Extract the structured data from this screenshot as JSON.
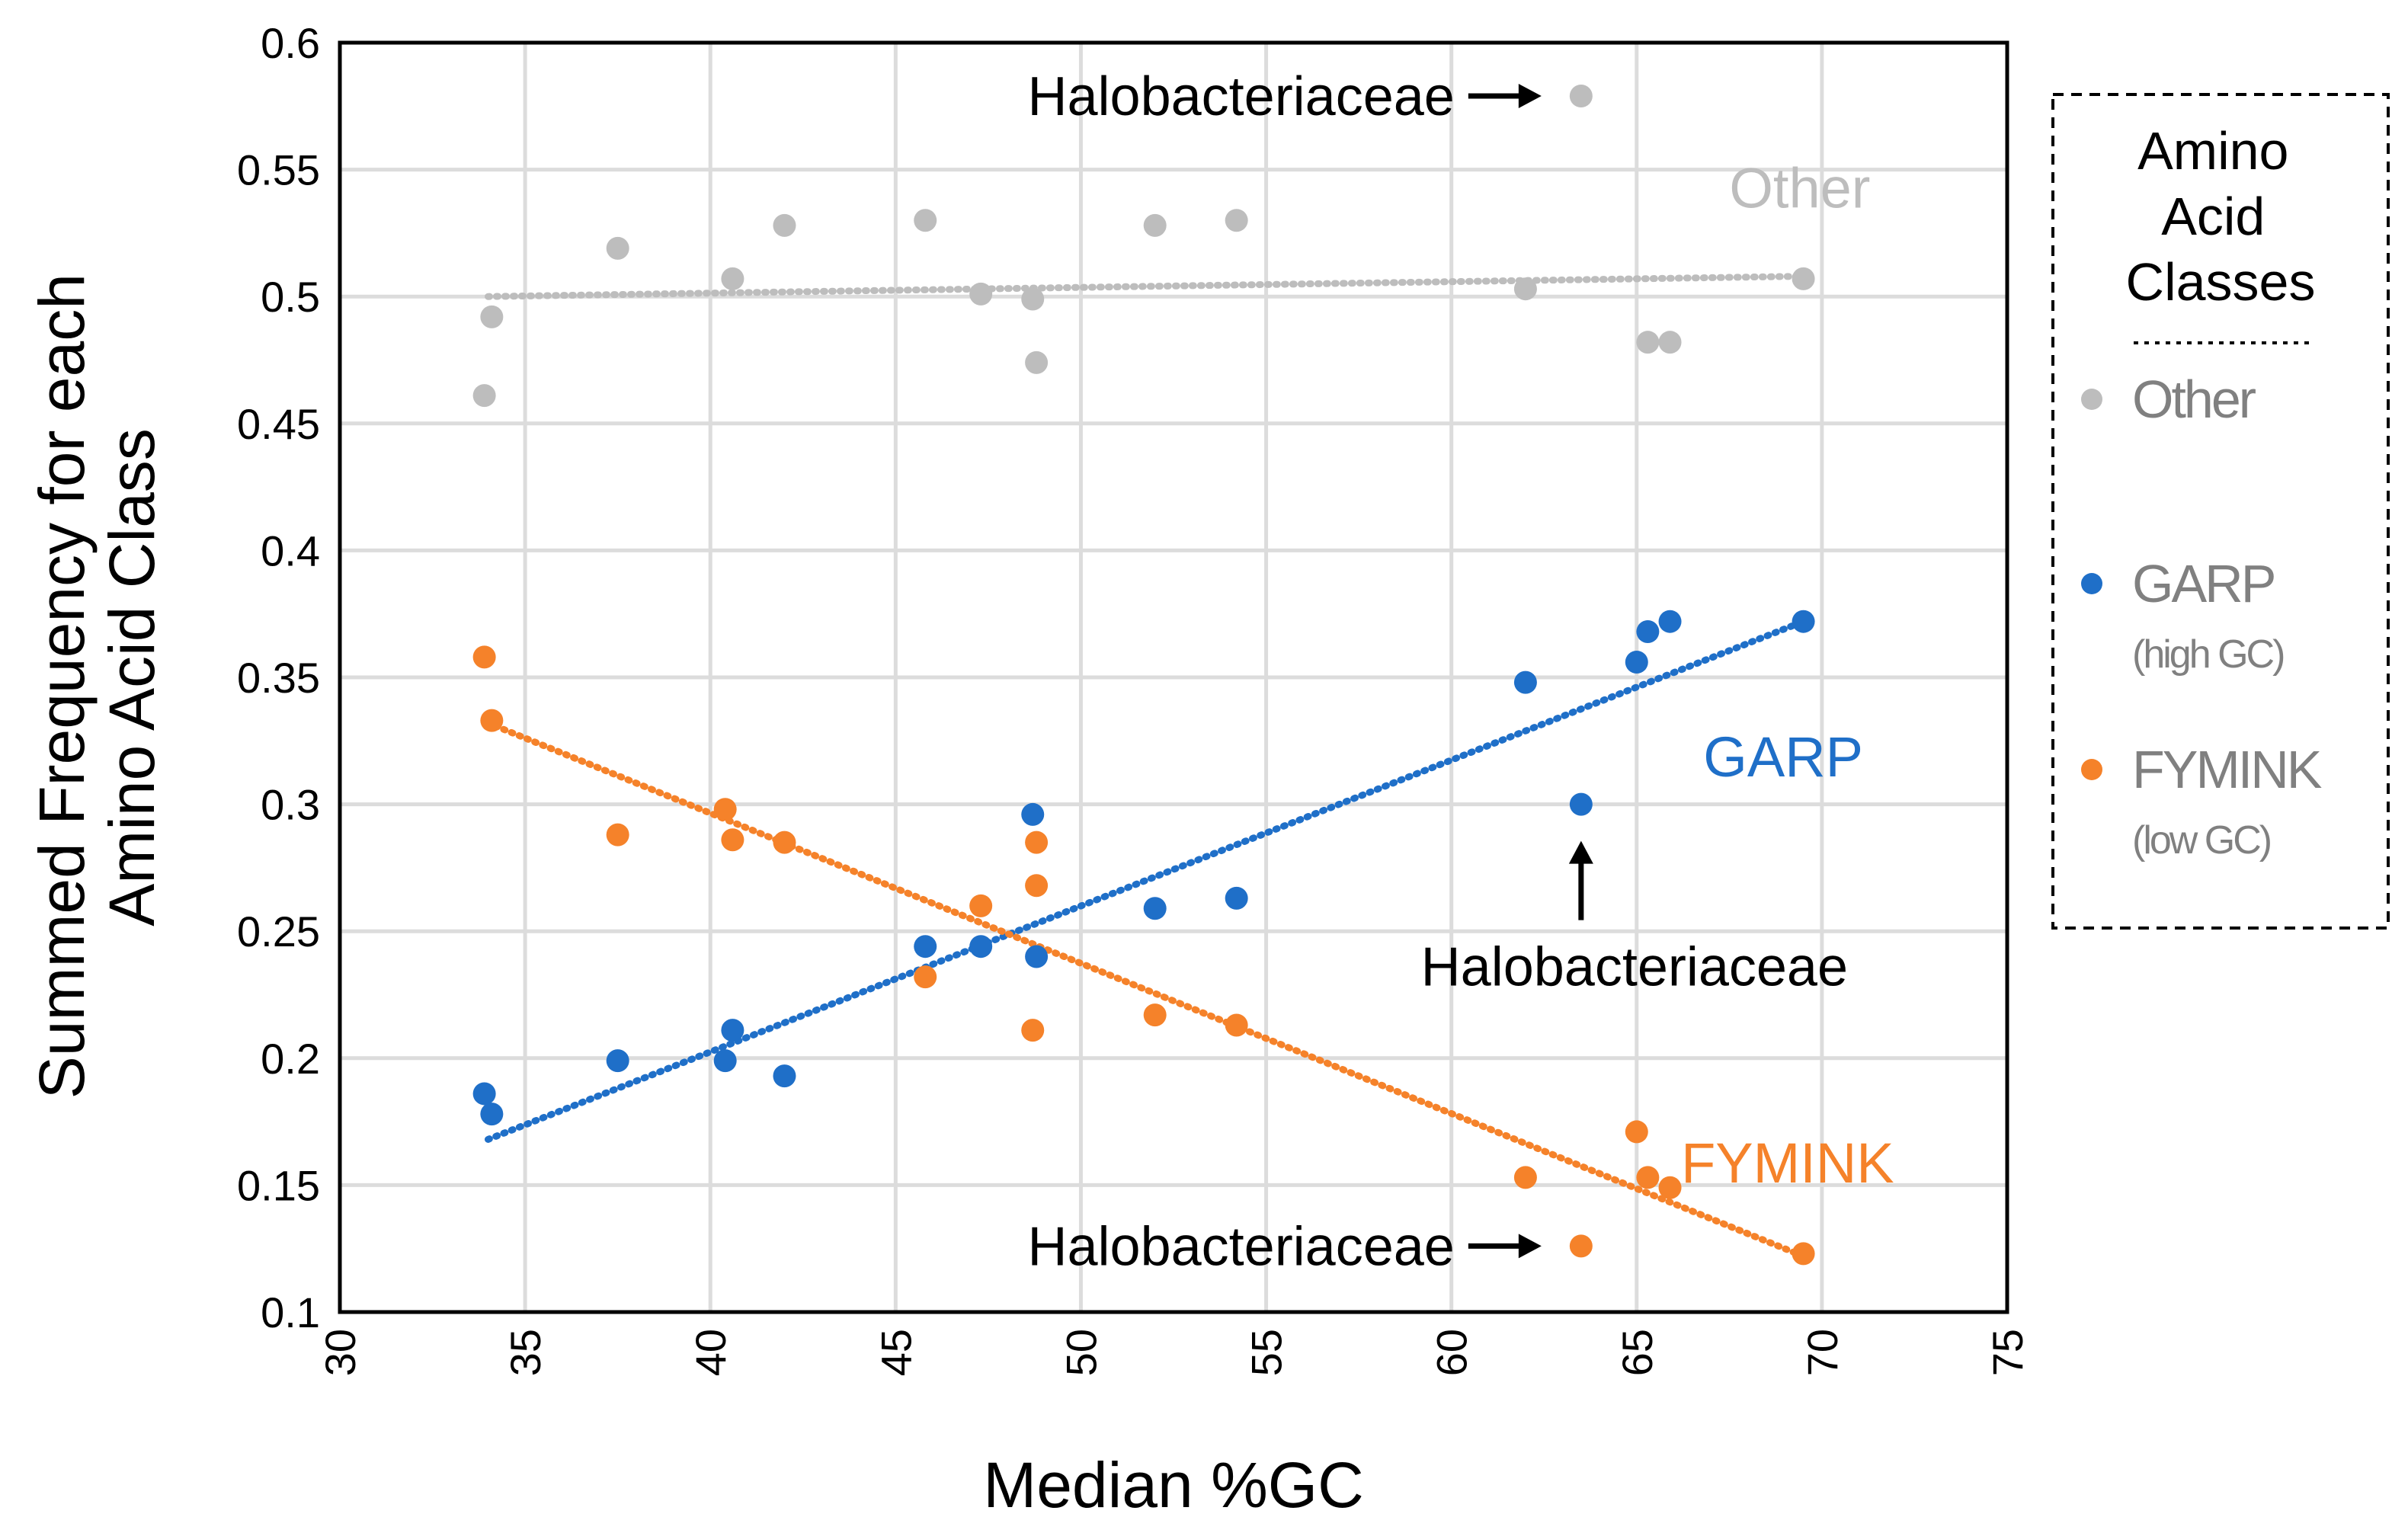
{
  "colors": {
    "other": "#BDBDBD",
    "garp": "#1F6FC8",
    "fymink": "#F5822A",
    "grid": "#DCDCDC",
    "frame": "#000000"
  },
  "chart_data": {
    "type": "scatter",
    "title": "",
    "xlabel": "Median  %GC",
    "ylabel_lines": [
      "Summed Frequency for each",
      "Amino Acid Class"
    ],
    "xlim": [
      30,
      75
    ],
    "ylim": [
      0.1,
      0.6
    ],
    "xticks": [
      30,
      35,
      40,
      45,
      50,
      55,
      60,
      65,
      70,
      75
    ],
    "yticks": [
      0.1,
      0.15,
      0.2,
      0.25,
      0.3,
      0.35,
      0.4,
      0.45,
      0.5,
      0.55,
      0.6
    ],
    "xtick_labels": [
      "30",
      "35",
      "40",
      "45",
      "50",
      "55",
      "60",
      "65",
      "70",
      "75"
    ],
    "ytick_labels": [
      "0.1",
      "0.15",
      "0.2",
      "0.25",
      "0.3",
      "0.35",
      "0.4",
      "0.45",
      "0.5",
      "0.55",
      "0.6"
    ],
    "grid": true,
    "series": [
      {
        "key": "other",
        "name": "Other",
        "color": "#BDBDBD",
        "x": [
          33.9,
          34.1,
          37.5,
          40.6,
          42.0,
          45.8,
          47.3,
          48.7,
          48.8,
          52.0,
          54.2,
          62.0,
          63.5,
          65.3,
          65.9,
          69.5
        ],
        "y": [
          0.461,
          0.492,
          0.519,
          0.507,
          0.528,
          0.53,
          0.501,
          0.499,
          0.474,
          0.528,
          0.53,
          0.503,
          0.579,
          0.482,
          0.482,
          0.507
        ],
        "trend": [
          [
            34,
            0.5
          ],
          [
            69.5,
            0.508
          ]
        ]
      },
      {
        "key": "garp",
        "name": "GARP",
        "color": "#1F6FC8",
        "x": [
          33.9,
          34.1,
          37.5,
          40.4,
          40.6,
          42.0,
          45.8,
          47.3,
          48.7,
          48.8,
          52.0,
          54.2,
          62.0,
          63.5,
          65.0,
          65.3,
          65.9,
          69.5
        ],
        "y": [
          0.186,
          0.178,
          0.199,
          0.199,
          0.211,
          0.193,
          0.244,
          0.244,
          0.296,
          0.24,
          0.259,
          0.263,
          0.348,
          0.3,
          0.356,
          0.368,
          0.372,
          0.372
        ],
        "trend": [
          [
            34,
            0.168
          ],
          [
            69.5,
            0.372
          ]
        ]
      },
      {
        "key": "fymink",
        "name": "FYMINK",
        "color": "#F5822A",
        "x": [
          33.9,
          34.1,
          37.5,
          40.4,
          40.6,
          42.0,
          45.8,
          47.3,
          48.7,
          48.8,
          48.8,
          52.0,
          54.2,
          62.0,
          63.5,
          65.0,
          65.3,
          65.9,
          69.5
        ],
        "y": [
          0.358,
          0.333,
          0.288,
          0.298,
          0.286,
          0.285,
          0.232,
          0.26,
          0.211,
          0.268,
          0.285,
          0.217,
          0.213,
          0.153,
          0.126,
          0.171,
          0.153,
          0.149,
          0.123
        ],
        "trend": [
          [
            34,
            0.332
          ],
          [
            69.5,
            0.122
          ]
        ]
      }
    ],
    "series_labels": [
      {
        "key": "other",
        "text": "Other",
        "x": 67.5,
        "y": 0.535
      },
      {
        "key": "garp",
        "text": "GARP",
        "x": 66.8,
        "y": 0.311
      },
      {
        "key": "fymink",
        "text": "FYMINK",
        "x": 66.2,
        "y": 0.151
      }
    ],
    "annotations": [
      {
        "text": "Halobacteriaceae",
        "x": 63.5,
        "y": 0.579,
        "arrow": "right"
      },
      {
        "text": "Halobacteriaceae",
        "x": 63.5,
        "y": 0.3,
        "arrow": "up"
      },
      {
        "text": "Halobacteriaceae",
        "x": 63.5,
        "y": 0.126,
        "arrow": "right"
      }
    ],
    "legend": {
      "position": "right",
      "title_lines": [
        "Amino",
        "Acid",
        "Classes"
      ],
      "items": [
        {
          "key": "other",
          "label": "Other",
          "sublabel": ""
        },
        {
          "key": "garp",
          "label": "GARP",
          "sublabel": "(high GC)"
        },
        {
          "key": "fymink",
          "label": "FYMINK",
          "sublabel": "(low GC)"
        }
      ]
    }
  }
}
